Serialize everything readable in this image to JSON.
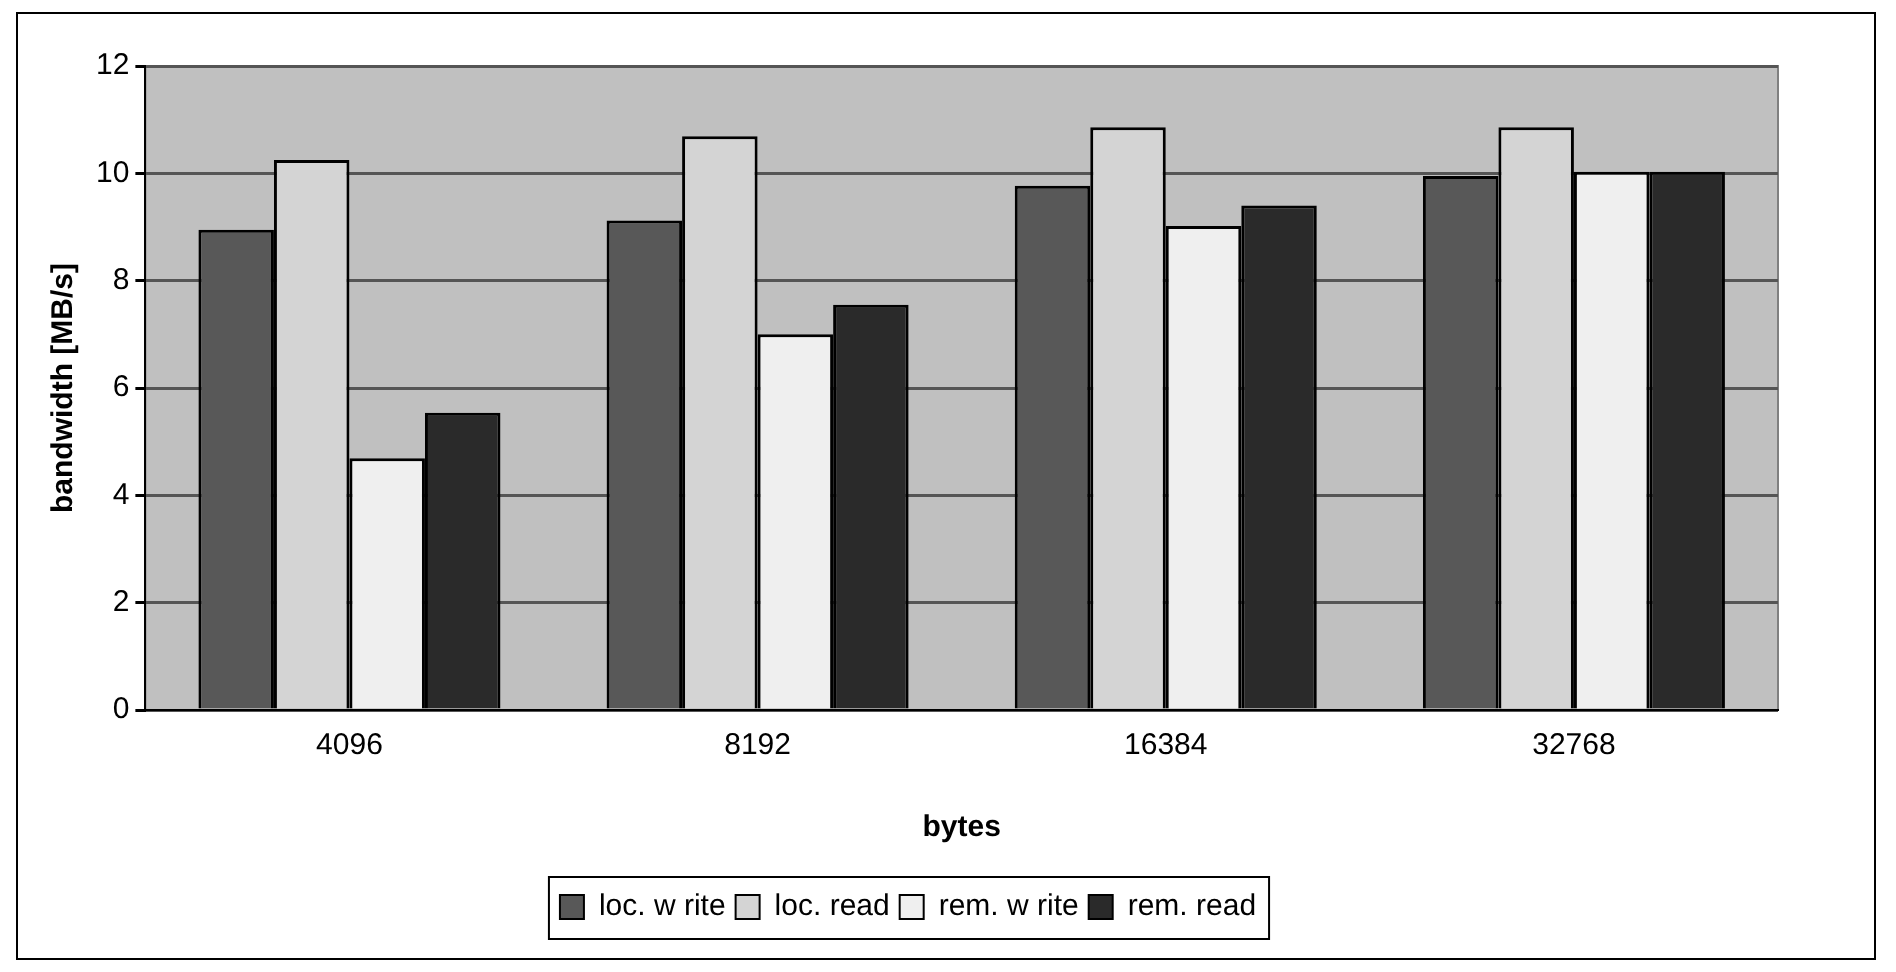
{
  "chart_data": {
    "type": "bar",
    "xlabel": "bytes",
    "ylabel": "bandwidth [MB/s]",
    "categories": [
      "4096",
      "8192",
      "16384",
      "32768"
    ],
    "series": [
      {
        "name": "loc. w rite",
        "color": "#585858",
        "values": [
          8.95,
          9.12,
          9.77,
          9.95
        ]
      },
      {
        "name": "loc. read",
        "color": "#d4d4d4",
        "values": [
          10.25,
          10.69,
          10.86,
          10.86
        ]
      },
      {
        "name": "rem. w rite",
        "color": "#efefef",
        "values": [
          4.69,
          7.0,
          9.02,
          10.03
        ]
      },
      {
        "name": "rem. read",
        "color": "#2a2a2a",
        "values": [
          5.54,
          7.55,
          9.4,
          10.03
        ]
      }
    ],
    "ylim": [
      0,
      12
    ],
    "yticks": [
      0,
      2,
      4,
      6,
      8,
      10,
      12
    ],
    "grid": "y",
    "legend": "bottom"
  }
}
